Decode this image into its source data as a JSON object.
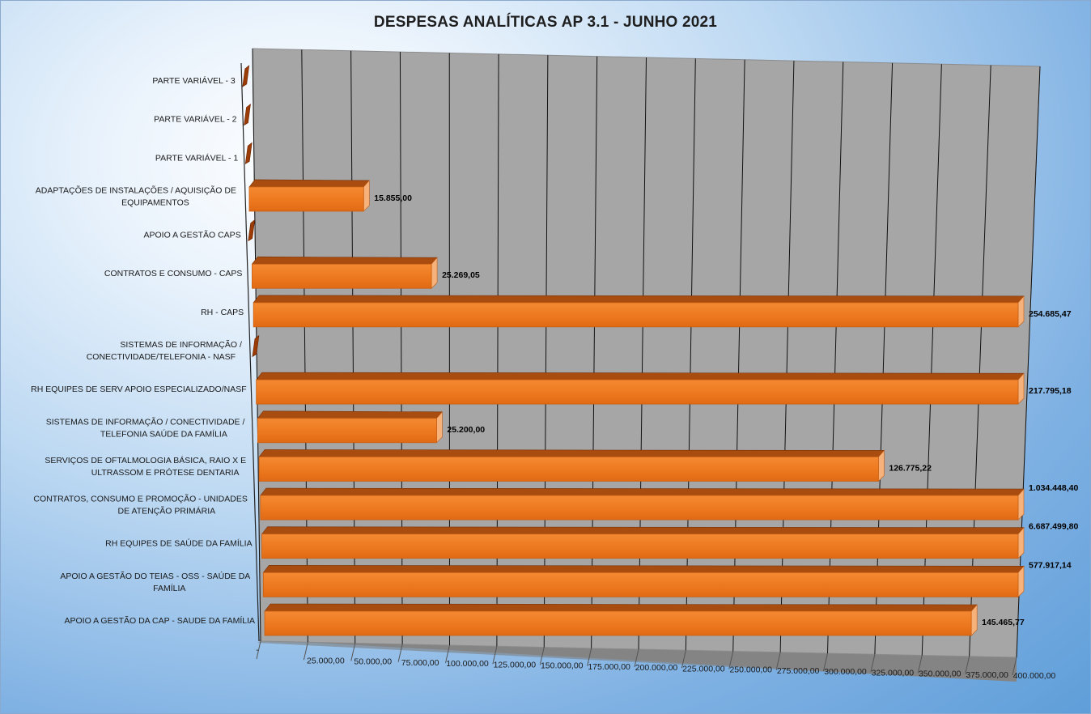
{
  "chart_data": {
    "type": "bar",
    "orientation": "horizontal",
    "style": "3d",
    "title": "DESPESAS ANALÍTICAS AP 3.1 - JUNHO 2021",
    "xlim": [
      0,
      400000
    ],
    "x_ticks": [
      "-",
      "25.000,00",
      "50.000,00",
      "75.000,00",
      "100.000,00",
      "125.000,00",
      "150.000,00",
      "175.000,00",
      "200.000,00",
      "225.000,00",
      "250.000,00",
      "275.000,00",
      "300.000,00",
      "325.000,00",
      "350.000,00",
      "375.000,00",
      "400.000,00"
    ],
    "grid": true,
    "bar_color": "#f07f24",
    "categories": [
      {
        "label": [
          "PARTE VARIÁVEL - 3"
        ],
        "value": 0,
        "value_label": ""
      },
      {
        "label": [
          "PARTE VARIÁVEL - 2"
        ],
        "value": 0,
        "value_label": ""
      },
      {
        "label": [
          "PARTE VARIÁVEL - 1"
        ],
        "value": 0,
        "value_label": ""
      },
      {
        "label": [
          "ADAPTAÇÕES DE INSTALAÇÕES / AQUISIÇÃO DE",
          "EQUIPAMENTOS"
        ],
        "value": 15855.0,
        "value_label": "15.855,00"
      },
      {
        "label": [
          "APOIO A GESTÃO CAPS"
        ],
        "value": 0,
        "value_label": ""
      },
      {
        "label": [
          "CONTRATOS E CONSUMO - CAPS"
        ],
        "value": 25269.05,
        "value_label": "25.269,05"
      },
      {
        "label": [
          "RH - CAPS"
        ],
        "value": 254685.47,
        "value_label": "254.685,47"
      },
      {
        "label": [
          "SISTEMAS DE INFORMAÇÃO /",
          "CONECTIVIDADE/TELEFONIA - NASF"
        ],
        "value": 0,
        "value_label": ""
      },
      {
        "label": [
          "RH EQUIPES DE SERV APOIO ESPECIALIZADO/NASF"
        ],
        "value": 217795.18,
        "value_label": "217.795,18"
      },
      {
        "label": [
          "SISTEMAS DE INFORMAÇÃO / CONECTIVIDADE /",
          "TELEFONIA SAÚDE DA FAMÍLIA"
        ],
        "value": 25200.0,
        "value_label": "25.200,00"
      },
      {
        "label": [
          "SERVIÇOS DE OFTALMOLOGIA BÁSICA, RAIO X E",
          "ULTRASSOM E PRÓTESE DENTARIA"
        ],
        "value": 126775.22,
        "value_label": "126.775,22"
      },
      {
        "label": [
          "CONTRATOS, CONSUMO E PROMOÇÃO - UNIDADES",
          "DE ATENÇÃO PRIMÁRIA"
        ],
        "value": 1034448.4,
        "value_label": "1.034.448,40"
      },
      {
        "label": [
          "RH EQUIPES DE SAÚDE DA FAMÍLIA"
        ],
        "value": 6687499.8,
        "value_label": "6.687.499,80"
      },
      {
        "label": [
          "APOIO A GESTÃO DO TEIAS - OSS - SAÚDE DA",
          "FAMÍLIA"
        ],
        "value": 577917.14,
        "value_label": "577.917,14"
      },
      {
        "label": [
          "APOIO A GESTÃO DA CAP - SAUDE DA FAMÍLIA"
        ],
        "value": 145465.77,
        "value_label": "145.465,77"
      }
    ]
  }
}
